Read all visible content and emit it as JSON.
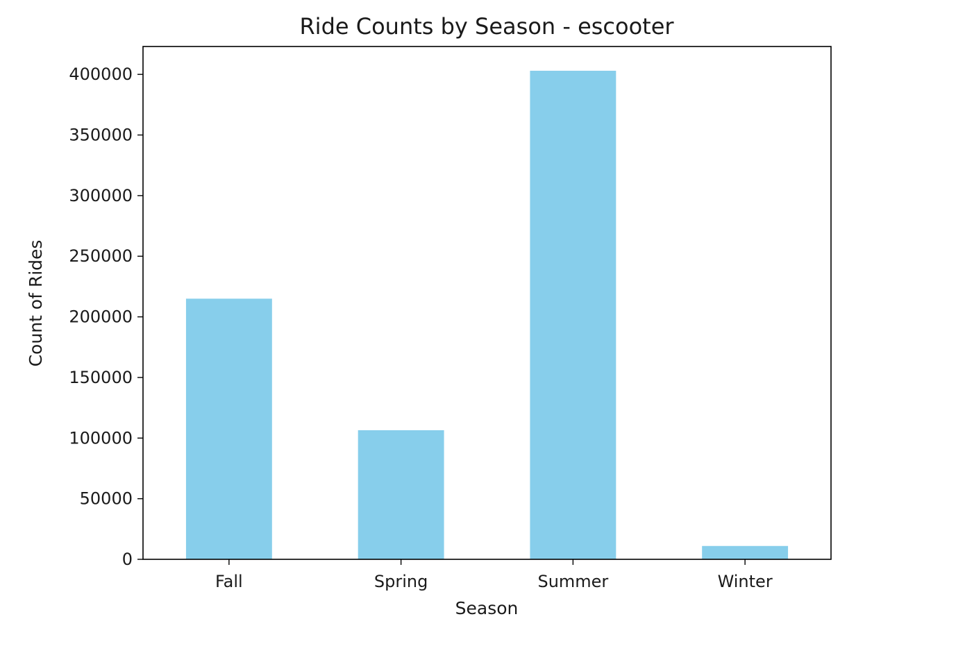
{
  "chart_data": {
    "type": "bar",
    "title": "Ride Counts by Season - escooter",
    "xlabel": "Season",
    "ylabel": "Count of Rides",
    "categories": [
      "Fall",
      "Spring",
      "Summer",
      "Winter"
    ],
    "values": [
      215000,
      106500,
      403000,
      11000
    ],
    "ylim": [
      0,
      423000
    ],
    "yticks": [
      0,
      50000,
      100000,
      150000,
      200000,
      250000,
      300000,
      350000,
      400000
    ],
    "bar_color": "#87ceeb",
    "grid": false,
    "legend": "none"
  }
}
